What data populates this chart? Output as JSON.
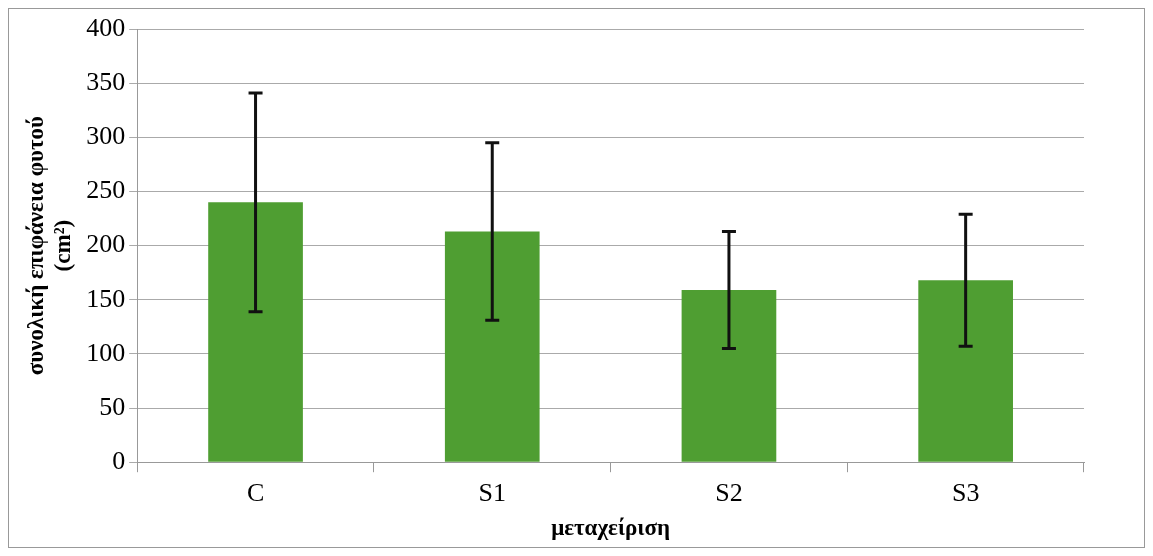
{
  "chart_data": {
    "type": "bar",
    "categories": [
      "C",
      "S1",
      "S2",
      "S3"
    ],
    "values": [
      240,
      213,
      159,
      168
    ],
    "errors": [
      101,
      82,
      54,
      61
    ],
    "color": "#4f9e32",
    "xlabel": "μεταχείριση",
    "ylabel": "συνολική επιφάνεια φυτού\n(cm²)",
    "ylim": [
      0,
      400
    ],
    "yticks": [
      0,
      50,
      100,
      150,
      200,
      250,
      300,
      350,
      400
    ],
    "grid": "y"
  }
}
